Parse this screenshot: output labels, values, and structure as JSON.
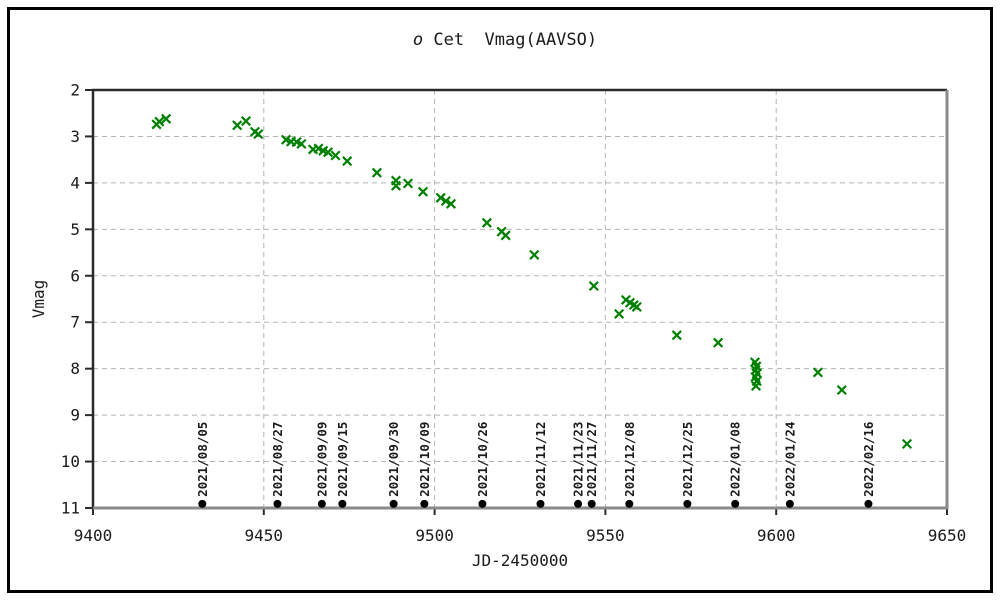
{
  "chart_data": {
    "type": "scatter",
    "title": "o Cet  Vmag(AAVSO)",
    "title_star": "o",
    "title_rest": " Cet  Vmag(AAVSO)",
    "xlabel": "JD-2450000",
    "ylabel": "Vmag",
    "xlim": [
      9400,
      9650
    ],
    "ylim_top": 2,
    "ylim_bottom": 11,
    "y_axis_inverted": true,
    "grid": "dashed",
    "x_ticks": [
      9400,
      9450,
      9500,
      9550,
      9600,
      9650
    ],
    "y_ticks": [
      2,
      3,
      4,
      5,
      6,
      7,
      8,
      9,
      10,
      11
    ],
    "colors": {
      "marker": "#008000",
      "grid": "#b4b4b4",
      "axis_dark": "#2a2a2a",
      "axis_light": "#8a8a8a",
      "text": "#1a1a1a",
      "date_marker": "#000000",
      "background": "#ffffff",
      "outer_border": "#000000"
    },
    "series": [
      {
        "name": "Vmag(AAVSO)",
        "marker": "x",
        "color": "#008000",
        "points": [
          [
            9418.6,
            2.74
          ],
          [
            9419.4,
            2.68
          ],
          [
            9421.4,
            2.62
          ],
          [
            9442.2,
            2.76
          ],
          [
            9444.8,
            2.67
          ],
          [
            9447.4,
            2.9
          ],
          [
            9448.4,
            2.95
          ],
          [
            9456.5,
            3.07
          ],
          [
            9458.0,
            3.11
          ],
          [
            9459.6,
            3.12
          ],
          [
            9461.0,
            3.16
          ],
          [
            9464.4,
            3.28
          ],
          [
            9466.0,
            3.26
          ],
          [
            9467.4,
            3.31
          ],
          [
            9468.8,
            3.34
          ],
          [
            9471.0,
            3.41
          ],
          [
            9474.4,
            3.53
          ],
          [
            9483.1,
            3.78
          ],
          [
            9488.7,
            3.95
          ],
          [
            9488.7,
            4.06
          ],
          [
            9492.2,
            4.01
          ],
          [
            9496.6,
            4.19
          ],
          [
            9501.8,
            4.32
          ],
          [
            9503.3,
            4.39
          ],
          [
            9504.8,
            4.45
          ],
          [
            9515.3,
            4.86
          ],
          [
            9519.6,
            5.05
          ],
          [
            9520.8,
            5.13
          ],
          [
            9529.2,
            5.55
          ],
          [
            9546.6,
            6.22
          ],
          [
            9554.0,
            6.82
          ],
          [
            9556.0,
            6.52
          ],
          [
            9557.2,
            6.58
          ],
          [
            9558.3,
            6.63
          ],
          [
            9559.2,
            6.67
          ],
          [
            9570.9,
            7.28
          ],
          [
            9583.0,
            7.44
          ],
          [
            9593.8,
            7.86
          ],
          [
            9594.2,
            7.95
          ],
          [
            9594.0,
            8.03
          ],
          [
            9594.4,
            8.1
          ],
          [
            9593.9,
            8.18
          ],
          [
            9594.3,
            8.27
          ],
          [
            9594.1,
            8.37
          ],
          [
            9612.2,
            8.08
          ],
          [
            9619.2,
            8.46
          ],
          [
            9638.3,
            9.62
          ]
        ]
      }
    ],
    "date_markers": {
      "dot_y_mag": 10.91,
      "items": [
        {
          "date": "2021/08/05",
          "jd": 9432
        },
        {
          "date": "2021/08/27",
          "jd": 9454
        },
        {
          "date": "2021/09/09",
          "jd": 9467
        },
        {
          "date": "2021/09/15",
          "jd": 9473
        },
        {
          "date": "2021/09/30",
          "jd": 9488
        },
        {
          "date": "2021/10/09",
          "jd": 9497
        },
        {
          "date": "2021/10/26",
          "jd": 9514
        },
        {
          "date": "2021/11/12",
          "jd": 9531
        },
        {
          "date": "2021/11/23",
          "jd": 9542
        },
        {
          "date": "2021/11/27",
          "jd": 9546
        },
        {
          "date": "2021/12/08",
          "jd": 9557
        },
        {
          "date": "2021/12/25",
          "jd": 9574
        },
        {
          "date": "2022/01/08",
          "jd": 9588
        },
        {
          "date": "2022/01/24",
          "jd": 9604
        },
        {
          "date": "2022/02/16",
          "jd": 9627
        }
      ]
    }
  }
}
